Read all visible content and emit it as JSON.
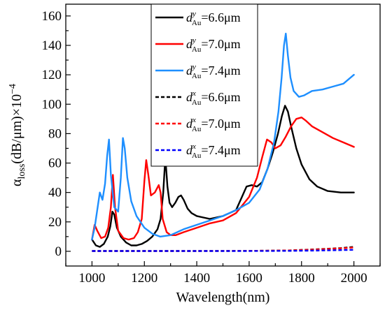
{
  "chart_data": {
    "type": "line",
    "xlabel": "Wavelength(nm)",
    "ylabel": {
      "symbol": "α",
      "subscript": "loss",
      "unit": "(dB/μm)×10",
      "exponent": "−4"
    },
    "xlim": [
      900,
      2100
    ],
    "ylim": [
      -10,
      168
    ],
    "xticks": [
      1000,
      1200,
      1400,
      1600,
      1800,
      2000
    ],
    "yticks": [
      0,
      20,
      40,
      60,
      80,
      100,
      120,
      140,
      160
    ],
    "grid": false,
    "legend_position": "top-center",
    "series": [
      {
        "name": "d_Au^y=6.6μm",
        "legend": {
          "sup": "y",
          "value": "=6.6μm"
        },
        "color": "#000000",
        "dash": "solid",
        "x": [
          1000,
          1015,
          1030,
          1045,
          1060,
          1070,
          1078,
          1085,
          1095,
          1110,
          1130,
          1150,
          1170,
          1190,
          1210,
          1230,
          1250,
          1262,
          1272,
          1280,
          1288,
          1296,
          1306,
          1318,
          1330,
          1340,
          1350,
          1365,
          1380,
          1400,
          1425,
          1450,
          1475,
          1500,
          1525,
          1550,
          1570,
          1590,
          1610,
          1630,
          1650,
          1670,
          1690,
          1710,
          1725,
          1737,
          1748,
          1760,
          1780,
          1800,
          1830,
          1860,
          1900,
          1950,
          2000
        ],
        "y": [
          8,
          4,
          3,
          5,
          10,
          17,
          27,
          25,
          16,
          10,
          6,
          4,
          4,
          5,
          7,
          10,
          15,
          22,
          40,
          64,
          44,
          33,
          30,
          33,
          37,
          38,
          35,
          29,
          26,
          24,
          23,
          22,
          23,
          24,
          26,
          28,
          36,
          44,
          45,
          44,
          47,
          56,
          67,
          80,
          92,
          99,
          95,
          85,
          70,
          59,
          49,
          44,
          41,
          40,
          40
        ]
      },
      {
        "name": "d_Au^y=7.0μm",
        "legend": {
          "sup": "y",
          "value": "=7.0μm"
        },
        "color": "#ff0000",
        "dash": "solid",
        "x": [
          1000,
          1010,
          1020,
          1035,
          1050,
          1062,
          1072,
          1080,
          1088,
          1100,
          1120,
          1140,
          1160,
          1175,
          1190,
          1200,
          1207,
          1215,
          1225,
          1240,
          1255,
          1262,
          1270,
          1285,
          1300,
          1320,
          1350,
          1400,
          1450,
          1500,
          1550,
          1600,
          1630,
          1650,
          1668,
          1685,
          1700,
          1720,
          1740,
          1760,
          1780,
          1800,
          1815,
          1840,
          1880,
          1920,
          1960,
          2000
        ],
        "y": [
          8,
          18,
          14,
          9,
          10,
          16,
          30,
          52,
          30,
          14,
          9,
          8,
          9,
          13,
          22,
          48,
          62,
          52,
          38,
          40,
          45,
          40,
          22,
          13,
          11,
          11,
          13,
          16,
          19,
          21,
          26,
          37,
          50,
          64,
          76,
          74,
          70,
          72,
          78,
          85,
          90,
          91,
          89,
          85,
          81,
          77,
          74,
          71
        ]
      },
      {
        "name": "d_Au^y=7.4μm",
        "legend": {
          "sup": "y",
          "value": "=7.4μm"
        },
        "color": "#1e8fff",
        "dash": "solid",
        "x": [
          1000,
          1010,
          1020,
          1030,
          1040,
          1050,
          1058,
          1065,
          1072,
          1085,
          1100,
          1110,
          1118,
          1125,
          1135,
          1150,
          1170,
          1200,
          1230,
          1260,
          1300,
          1350,
          1400,
          1450,
          1500,
          1550,
          1600,
          1640,
          1670,
          1695,
          1712,
          1724,
          1733,
          1740,
          1748,
          1758,
          1770,
          1790,
          1810,
          1840,
          1880,
          1920,
          1960,
          2000
        ],
        "y": [
          8,
          16,
          28,
          40,
          35,
          46,
          65,
          76,
          52,
          30,
          27,
          50,
          77,
          70,
          50,
          34,
          24,
          16,
          12,
          10,
          11,
          15,
          18,
          21,
          24,
          28,
          33,
          42,
          56,
          74,
          95,
          118,
          140,
          148,
          133,
          118,
          109,
          105,
          106,
          109,
          110,
          112,
          114,
          120
        ]
      },
      {
        "name": "d_Au^x=6.6μm",
        "legend": {
          "sup": "x",
          "value": "=6.6μm"
        },
        "color": "#000000",
        "dash": "dashed",
        "x": [
          1000,
          1200,
          1400,
          1600,
          1750,
          1850,
          1950,
          2000
        ],
        "y": [
          0.2,
          0.2,
          0.2,
          0.3,
          0.6,
          1.3,
          2.2,
          3.0
        ]
      },
      {
        "name": "d_Au^x=7.0μm",
        "legend": {
          "sup": "x",
          "value": "=7.0μm"
        },
        "color": "#ff0000",
        "dash": "dashed",
        "x": [
          1000,
          1200,
          1400,
          1600,
          1750,
          1850,
          1950,
          2000
        ],
        "y": [
          0.2,
          0.2,
          0.2,
          0.3,
          0.6,
          1.2,
          2.0,
          2.6
        ]
      },
      {
        "name": "d_Au^x=7.4μm",
        "legend": {
          "sup": "x",
          "value": "=7.4μm"
        },
        "color": "#0000ff",
        "dash": "dashed",
        "x": [
          1000,
          1200,
          1400,
          1600,
          1750,
          1850,
          1950,
          2000
        ],
        "y": [
          0.2,
          0.2,
          0.2,
          0.2,
          0.3,
          0.5,
          0.8,
          1.0
        ]
      }
    ],
    "legend_symbol": "d",
    "legend_subscript": "Au"
  }
}
